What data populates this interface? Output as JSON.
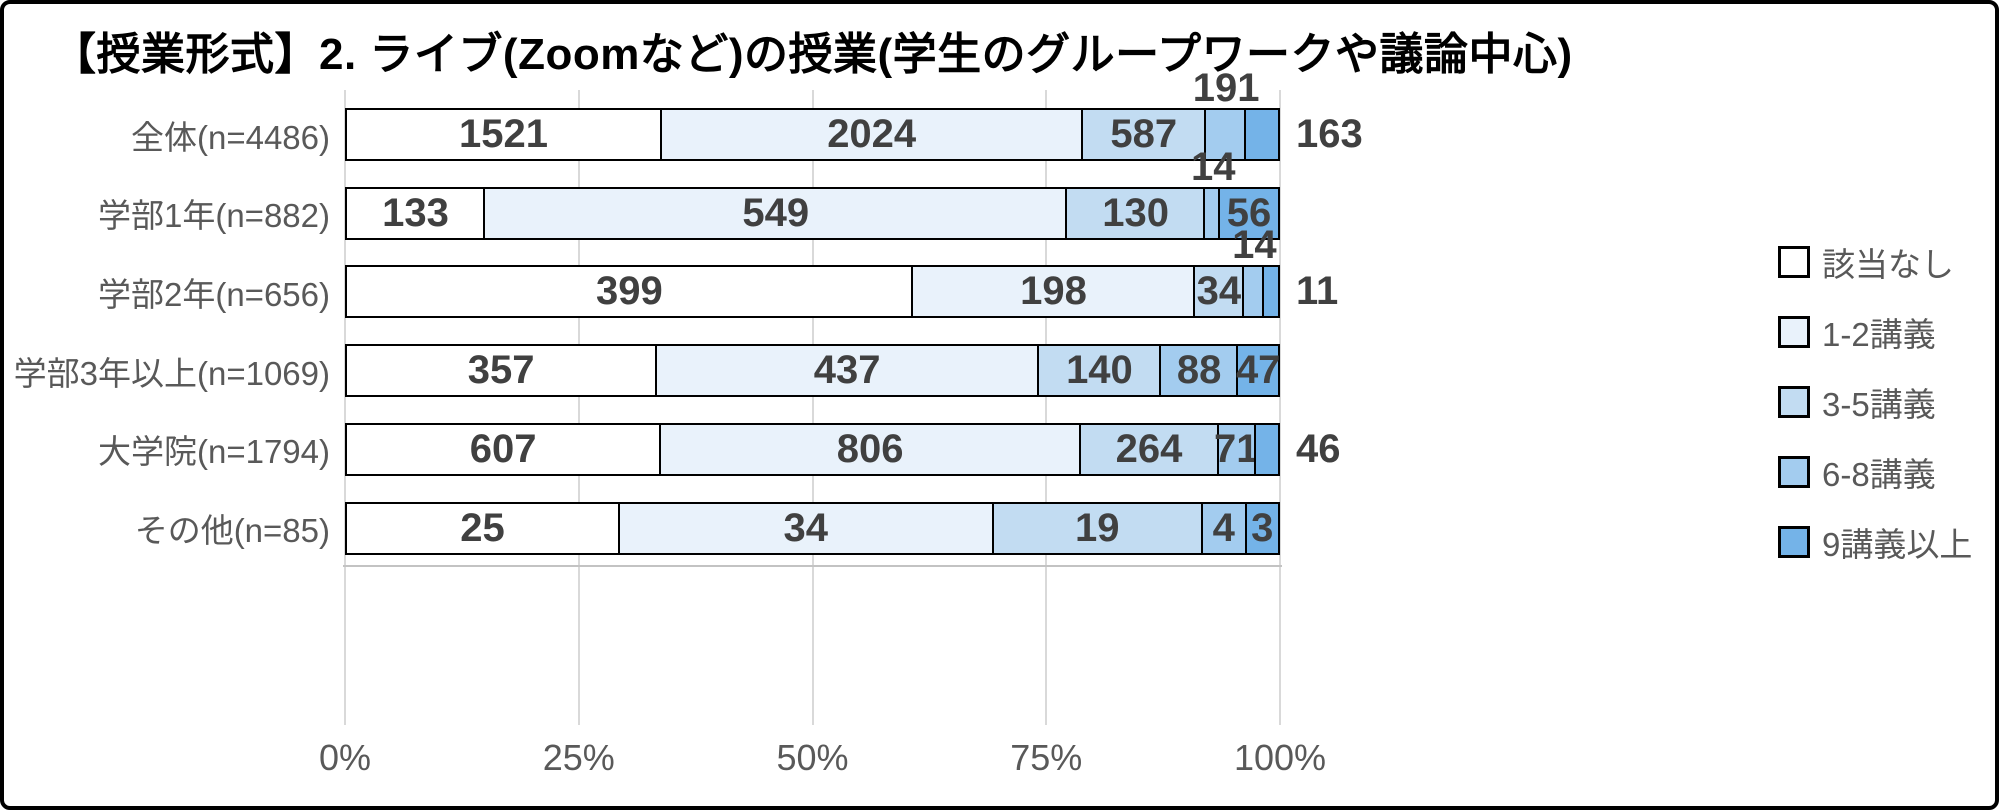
{
  "title": "【授業形式】2. ライブ(Zoomなど)の授業(学生のグループワークや議論中心)",
  "chart_data": {
    "type": "bar",
    "stacked": true,
    "percent_stacked": true,
    "orientation": "horizontal",
    "title": "【授業形式】2. ライブ(Zoomなど)の授業(学生のグループワークや議論中心)",
    "categories": [
      "全体(n=4486)",
      "学部1年(n=882)",
      "学部2年(n=656)",
      "学部3年以上(n=1069)",
      "大学院(n=1794)",
      "その他(n=85)"
    ],
    "series": [
      {
        "name": "該当なし",
        "color": "#FFFFFF",
        "values": [
          1521,
          133,
          399,
          357,
          607,
          25
        ]
      },
      {
        "name": "1-2講義",
        "color": "#E9F2FB",
        "values": [
          2024,
          549,
          198,
          437,
          806,
          34
        ]
      },
      {
        "name": "3-5講義",
        "color": "#C2DCF2",
        "values": [
          587,
          130,
          34,
          140,
          264,
          19
        ]
      },
      {
        "name": "6-8講義",
        "color": "#A3CCEF",
        "values": [
          191,
          14,
          14,
          88,
          71,
          4
        ]
      },
      {
        "name": "9講義以上",
        "color": "#74B3E8",
        "values": [
          163,
          56,
          11,
          47,
          46,
          3
        ]
      }
    ],
    "label_placement": [
      [
        "in",
        "in",
        "in",
        "above",
        "out"
      ],
      [
        "in",
        "in",
        "in",
        "above",
        "in"
      ],
      [
        "in",
        "in",
        "in",
        "above",
        "out"
      ],
      [
        "in",
        "in",
        "in",
        "in",
        "in"
      ],
      [
        "in",
        "in",
        "in",
        "in",
        "out"
      ],
      [
        "in",
        "in",
        "in",
        "in",
        "in"
      ]
    ],
    "x_ticks": [
      "0%",
      "25%",
      "50%",
      "75%",
      "100%"
    ],
    "xlim": [
      0,
      100
    ],
    "grid": true,
    "legend_position": "right",
    "legend": [
      "該当なし",
      "1-2講義",
      "3-5講義",
      "6-8講義",
      "9講義以上"
    ]
  }
}
